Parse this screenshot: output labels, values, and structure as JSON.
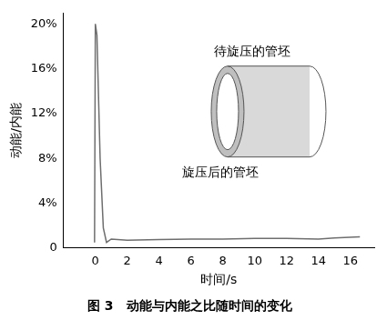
{
  "chart_data": {
    "type": "line",
    "title": "图 3   动能与内能之比随时间的变化",
    "x_label": "时间/s",
    "y_label": "动能/内能",
    "annotations": [
      "待旋压的管坯",
      "旋压后的管坯"
    ],
    "series": [
      {
        "name": "动能/内能",
        "color": "#6e6e6e",
        "x": [
          -0.05,
          0,
          0.1,
          0.3,
          0.5,
          0.7,
          1.0,
          2,
          4,
          6,
          8,
          10,
          12,
          14,
          15,
          16.6
        ],
        "values": [
          0.5,
          20,
          19,
          8,
          1.8,
          0.5,
          0.8,
          0.7,
          0.75,
          0.8,
          0.8,
          0.85,
          0.85,
          0.8,
          0.9,
          1.0
        ]
      }
    ],
    "xlim": [
      -2,
      17.5
    ],
    "xticks": [
      0,
      2,
      4,
      6,
      8,
      10,
      12,
      14,
      16
    ],
    "ylim": [
      0,
      21
    ],
    "yticks": [
      0,
      {
        "value": 4,
        "label": "4%"
      },
      {
        "value": 8,
        "label": "8%"
      },
      {
        "value": 12,
        "label": "12%"
      },
      {
        "value": 16,
        "label": "16%"
      },
      {
        "value": 20,
        "label": "20%"
      }
    ],
    "grid": false
  }
}
